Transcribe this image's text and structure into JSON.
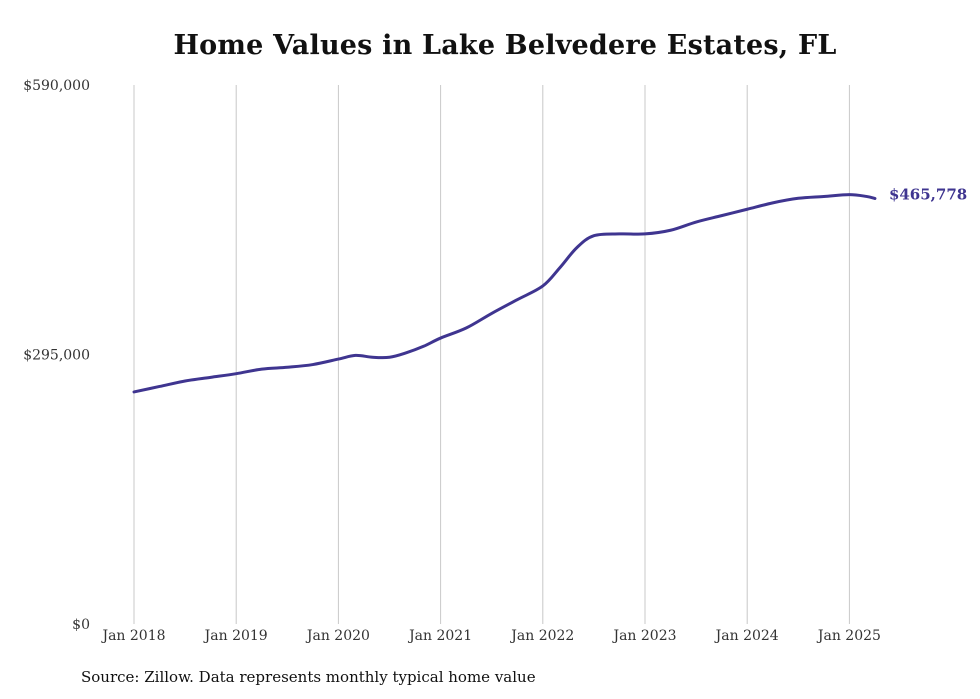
{
  "chart_data": {
    "type": "line",
    "title": "Home Values in Lake Belvedere Estates, FL",
    "xlabel": "",
    "ylabel": "",
    "ylim": [
      0,
      590000
    ],
    "y_ticks": [
      {
        "value": 0,
        "label": "$0"
      },
      {
        "value": 295000,
        "label": "$295,000"
      },
      {
        "value": 590000,
        "label": "$590,000"
      }
    ],
    "x_ticks": [
      {
        "value": "2018-01",
        "label": "Jan 2018"
      },
      {
        "value": "2019-01",
        "label": "Jan 2019"
      },
      {
        "value": "2020-01",
        "label": "Jan 2020"
      },
      {
        "value": "2021-01",
        "label": "Jan 2021"
      },
      {
        "value": "2022-01",
        "label": "Jan 2022"
      },
      {
        "value": "2023-01",
        "label": "Jan 2023"
      },
      {
        "value": "2024-01",
        "label": "Jan 2024"
      },
      {
        "value": "2025-01",
        "label": "Jan 2025"
      }
    ],
    "grid": {
      "vertical": true,
      "horizontal": false
    },
    "series": [
      {
        "color": "#3f3590",
        "points": [
          {
            "x": "2018-01",
            "y": 254000
          },
          {
            "x": "2018-04",
            "y": 260000
          },
          {
            "x": "2018-07",
            "y": 266000
          },
          {
            "x": "2018-10",
            "y": 270000
          },
          {
            "x": "2019-01",
            "y": 274000
          },
          {
            "x": "2019-04",
            "y": 279000
          },
          {
            "x": "2019-07",
            "y": 281000
          },
          {
            "x": "2019-10",
            "y": 284000
          },
          {
            "x": "2020-01",
            "y": 290000
          },
          {
            "x": "2020-03",
            "y": 294000
          },
          {
            "x": "2020-05",
            "y": 292000
          },
          {
            "x": "2020-07",
            "y": 292000
          },
          {
            "x": "2020-09",
            "y": 297000
          },
          {
            "x": "2020-11",
            "y": 304000
          },
          {
            "x": "2021-01",
            "y": 313000
          },
          {
            "x": "2021-04",
            "y": 324000
          },
          {
            "x": "2021-07",
            "y": 340000
          },
          {
            "x": "2021-10",
            "y": 355000
          },
          {
            "x": "2022-01",
            "y": 370000
          },
          {
            "x": "2022-03",
            "y": 390000
          },
          {
            "x": "2022-05",
            "y": 412000
          },
          {
            "x": "2022-07",
            "y": 425000
          },
          {
            "x": "2022-10",
            "y": 427000
          },
          {
            "x": "2023-01",
            "y": 427000
          },
          {
            "x": "2023-04",
            "y": 431000
          },
          {
            "x": "2023-07",
            "y": 440000
          },
          {
            "x": "2023-10",
            "y": 447000
          },
          {
            "x": "2024-01",
            "y": 454000
          },
          {
            "x": "2024-04",
            "y": 461000
          },
          {
            "x": "2024-07",
            "y": 466000
          },
          {
            "x": "2024-10",
            "y": 468000
          },
          {
            "x": "2025-01",
            "y": 470000
          },
          {
            "x": "2025-03",
            "y": 468000
          },
          {
            "x": "2025-04",
            "y": 465778
          }
        ]
      }
    ],
    "end_label": "$465,778"
  },
  "source": "Source: Zillow. Data represents monthly typical home value"
}
